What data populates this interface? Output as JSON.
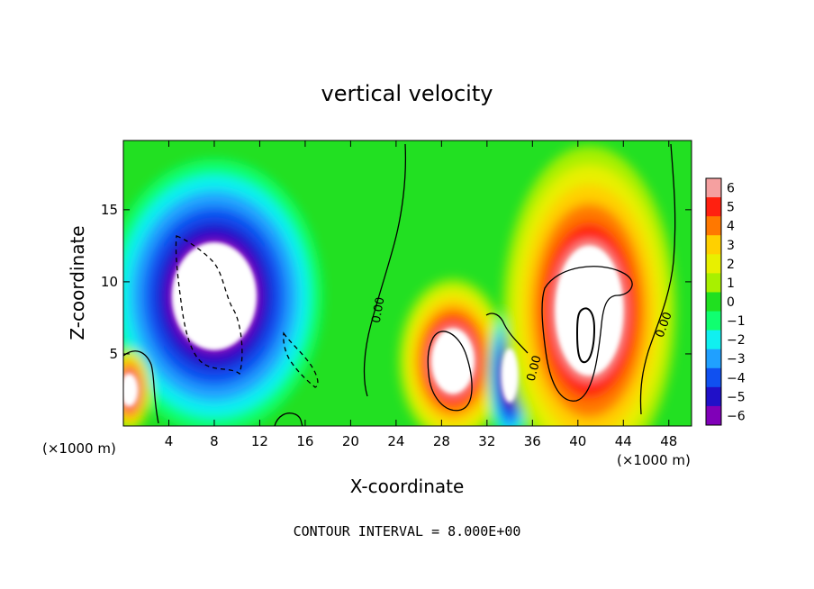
{
  "chart_data": {
    "type": "heatmap",
    "title": "vertical velocity",
    "xlabel": "X-coordinate",
    "ylabel": "Z-coordinate",
    "x_units": "(×1000 m)",
    "x_ticks": [
      4,
      8,
      12,
      16,
      20,
      24,
      28,
      32,
      36,
      40,
      44,
      48
    ],
    "y_ticks": [
      5,
      10,
      15
    ],
    "xlim": [
      0,
      50
    ],
    "ylim": [
      0,
      19.8
    ],
    "contour_label": "0.00",
    "footer": "CONTOUR INTERVAL = 8.000E+00",
    "colorbar": {
      "labels": [
        "6",
        "5",
        "4",
        "3",
        "2",
        "1",
        "0",
        "−1",
        "−2",
        "−3",
        "−4",
        "−5",
        "−6"
      ],
      "values": [
        6,
        5,
        4,
        3,
        2,
        1,
        0,
        -1,
        -2,
        -3,
        -4,
        -5,
        -6
      ],
      "colors": [
        "#f5a0a0",
        "#ff2010",
        "#ff7800",
        "#ffd000",
        "#e8f000",
        "#a8f000",
        "#20e020",
        "#10ff70",
        "#10f0f0",
        "#20a0ff",
        "#1050f0",
        "#2010c8",
        "#8000b8"
      ]
    },
    "features": [
      {
        "kind": "downdraft",
        "sign": -1,
        "cx": 8,
        "cz": 9,
        "rx": 5,
        "rz": 5
      },
      {
        "kind": "updraft",
        "sign": 1,
        "cx": 29,
        "cz": 4.5,
        "rx": 2.5,
        "rz": 3
      },
      {
        "kind": "downdraft",
        "sign": -1,
        "cx": 34,
        "cz": 3.5,
        "rx": 1,
        "rz": 2.5
      },
      {
        "kind": "updraft",
        "sign": 1,
        "cx": 41,
        "cz": 8,
        "rx": 4,
        "rz": 6
      },
      {
        "kind": "updraft",
        "sign": 1,
        "cx": 0.5,
        "cz": 2.5,
        "rx": 1,
        "rz": 1.5
      }
    ]
  }
}
